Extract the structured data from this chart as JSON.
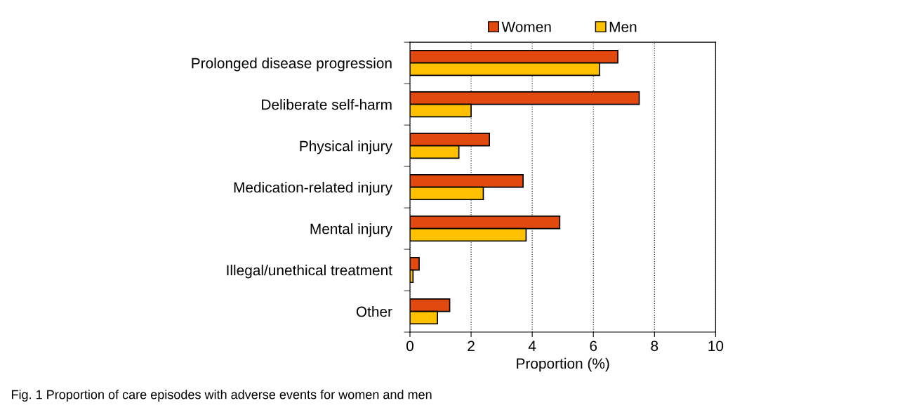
{
  "chart_data": {
    "type": "bar",
    "orientation": "horizontal",
    "categories": [
      "Prolonged disease progression",
      "Deliberate self-harm",
      "Physical injury",
      "Medication-related injury",
      "Mental injury",
      "Illegal/unethical treatment",
      "Other"
    ],
    "series": [
      {
        "name": "Women",
        "color": "#e2490f",
        "values": [
          6.8,
          7.5,
          2.6,
          3.7,
          4.9,
          0.3,
          1.3
        ]
      },
      {
        "name": "Men",
        "color": "#ffc000",
        "values": [
          6.2,
          2.0,
          1.6,
          2.4,
          3.8,
          0.1,
          0.9
        ]
      }
    ],
    "xlabel": "Proportion (%)",
    "xlim": [
      0,
      10
    ],
    "xticks": [
      0,
      2,
      4,
      6,
      8,
      10
    ],
    "grid": "x",
    "legend": "top",
    "annotations": [
      "Fig. 1 Proportion of care episodes with adverse events for women and men"
    ]
  }
}
